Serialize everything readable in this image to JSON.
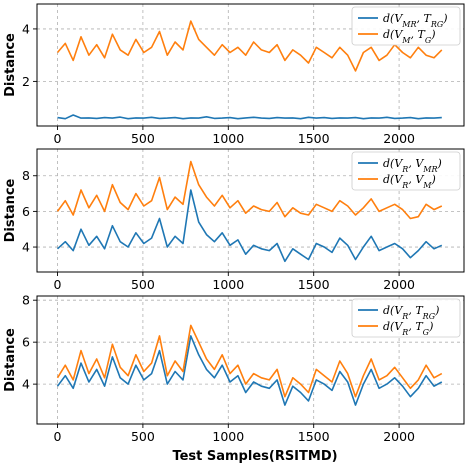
{
  "figure": {
    "xlabel": "Test Samples(RSITMD)"
  },
  "colors": {
    "blue": "#1f77b4",
    "orange": "#ff7f0e",
    "grid": "#b0b0b0"
  },
  "chart_data": [
    {
      "type": "line",
      "ylabel": "Distance",
      "xlim": [
        -120,
        2380
      ],
      "ylim": [
        0.3,
        4.95
      ],
      "xticks": [
        0,
        500,
        1000,
        1500,
        2000
      ],
      "yticks": [
        2,
        4
      ],
      "grid": true,
      "legend_position": "top-right",
      "legend": [
        "d(V_MR, T_RG)",
        "d(V_M, T_G)"
      ],
      "series": [
        {
          "name": "d(V_MR, T_RG)",
          "color": "#1f77b4",
          "x_range": [
            0,
            2250
          ],
          "values": [
            0.62,
            0.58,
            0.72,
            0.6,
            0.61,
            0.59,
            0.62,
            0.6,
            0.64,
            0.58,
            0.61,
            0.6,
            0.63,
            0.59,
            0.6,
            0.62,
            0.58,
            0.61,
            0.6,
            0.65,
            0.59,
            0.6,
            0.62,
            0.58,
            0.61,
            0.63,
            0.6,
            0.59,
            0.62,
            0.6,
            0.61,
            0.58,
            0.63,
            0.6,
            0.62,
            0.59,
            0.61,
            0.6,
            0.62,
            0.58,
            0.61,
            0.6,
            0.63,
            0.59,
            0.6,
            0.62,
            0.58,
            0.61,
            0.6,
            0.62
          ]
        },
        {
          "name": "d(V_M, T_G)",
          "color": "#ff7f0e",
          "x_range": [
            0,
            2250
          ],
          "values": [
            3.1,
            3.45,
            2.8,
            3.7,
            3.0,
            3.4,
            2.9,
            3.8,
            3.2,
            3.0,
            3.6,
            3.1,
            3.3,
            3.9,
            3.0,
            3.5,
            3.2,
            4.3,
            3.6,
            3.3,
            3.0,
            3.4,
            3.1,
            3.3,
            3.0,
            3.5,
            3.2,
            3.1,
            3.4,
            2.8,
            3.2,
            3.0,
            2.7,
            3.3,
            3.1,
            2.9,
            3.3,
            3.0,
            2.4,
            3.1,
            3.3,
            2.8,
            3.0,
            3.4,
            3.1,
            2.9,
            3.3,
            3.0,
            2.9,
            3.2
          ]
        }
      ]
    },
    {
      "type": "line",
      "ylabel": "Distance",
      "xlim": [
        -120,
        2380
      ],
      "ylim": [
        2.6,
        9.5
      ],
      "xticks": [
        0,
        500,
        1000,
        1500,
        2000
      ],
      "yticks": [
        4,
        6,
        8
      ],
      "grid": true,
      "legend_position": "top-right",
      "legend": [
        "d(V_R, V_MR)",
        "d(V_R, V_M)"
      ],
      "series": [
        {
          "name": "d(V_R, V_MR)",
          "color": "#1f77b4",
          "x_range": [
            0,
            2250
          ],
          "values": [
            3.9,
            4.3,
            3.8,
            5.0,
            4.1,
            4.6,
            3.9,
            5.2,
            4.3,
            4.0,
            4.8,
            4.2,
            4.5,
            5.6,
            4.0,
            4.6,
            4.2,
            7.2,
            5.4,
            4.7,
            4.3,
            4.8,
            4.1,
            4.4,
            3.6,
            4.1,
            3.9,
            3.8,
            4.2,
            3.2,
            3.9,
            3.6,
            3.3,
            4.2,
            4.0,
            3.7,
            4.5,
            4.1,
            3.3,
            4.0,
            4.6,
            3.8,
            4.0,
            4.2,
            3.9,
            3.4,
            3.8,
            4.3,
            3.9,
            4.1
          ]
        },
        {
          "name": "d(V_R, V_M)",
          "color": "#ff7f0e",
          "x_range": [
            0,
            2250
          ],
          "values": [
            6.0,
            6.6,
            5.8,
            7.2,
            6.2,
            6.9,
            6.0,
            7.5,
            6.5,
            6.1,
            7.0,
            6.3,
            6.6,
            7.9,
            6.1,
            6.8,
            6.4,
            8.8,
            7.5,
            6.8,
            6.3,
            6.9,
            6.2,
            6.6,
            5.9,
            6.3,
            6.1,
            6.0,
            6.5,
            5.7,
            6.2,
            5.9,
            5.8,
            6.4,
            6.2,
            6.0,
            6.6,
            6.3,
            5.8,
            6.2,
            6.7,
            6.0,
            6.2,
            6.4,
            6.1,
            5.6,
            5.7,
            6.4,
            6.1,
            6.3
          ]
        }
      ]
    },
    {
      "type": "line",
      "ylabel": "Distance",
      "xlim": [
        -120,
        2380
      ],
      "ylim": [
        2.1,
        8.2
      ],
      "xticks": [
        0,
        500,
        1000,
        1500,
        2000
      ],
      "yticks": [
        4,
        6,
        8
      ],
      "grid": true,
      "legend_position": "top-right",
      "legend": [
        "d(V_R, T_RG)",
        "d(V_R, T_G)"
      ],
      "series": [
        {
          "name": "d(V_R, T_RG)",
          "color": "#1f77b4",
          "x_range": [
            0,
            2250
          ],
          "values": [
            3.9,
            4.4,
            3.8,
            5.0,
            4.1,
            4.7,
            3.9,
            5.3,
            4.3,
            4.0,
            4.9,
            4.2,
            4.5,
            5.6,
            4.0,
            4.6,
            4.2,
            6.3,
            5.4,
            4.7,
            4.3,
            4.9,
            4.1,
            4.4,
            3.6,
            4.1,
            3.9,
            3.8,
            4.2,
            3.0,
            3.9,
            3.6,
            3.2,
            4.2,
            4.0,
            3.7,
            4.6,
            4.1,
            3.0,
            4.0,
            4.7,
            3.8,
            4.0,
            4.3,
            3.9,
            3.4,
            3.8,
            4.4,
            3.9,
            4.1
          ]
        },
        {
          "name": "d(V_R, T_G)",
          "color": "#ff7f0e",
          "x_range": [
            0,
            2250
          ],
          "values": [
            4.3,
            4.9,
            4.2,
            5.6,
            4.5,
            5.2,
            4.3,
            5.9,
            4.8,
            4.4,
            5.4,
            4.6,
            5.0,
            6.3,
            4.4,
            5.1,
            4.6,
            6.8,
            6.0,
            5.2,
            4.7,
            5.4,
            4.5,
            4.9,
            4.0,
            4.5,
            4.3,
            4.2,
            4.7,
            3.4,
            4.3,
            4.0,
            3.6,
            4.7,
            4.4,
            4.1,
            5.1,
            4.5,
            3.4,
            4.4,
            5.2,
            4.2,
            4.4,
            4.8,
            4.3,
            3.8,
            4.2,
            4.9,
            4.3,
            4.5
          ]
        }
      ]
    }
  ]
}
